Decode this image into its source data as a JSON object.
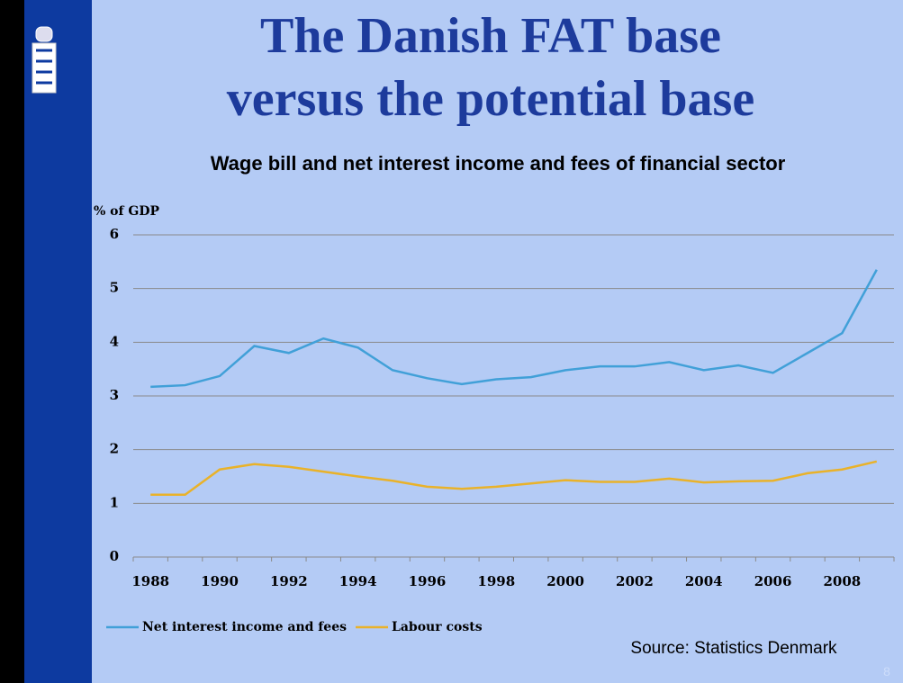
{
  "title_lines": [
    "The Danish FAT base",
    "versus the potential base"
  ],
  "source": "Source: Statistics Denmark",
  "slide_number": "8",
  "chart_data": {
    "type": "line",
    "title": "Wage bill and net interest income and fees of financial sector",
    "y_label": "% of GDP",
    "categories": [
      "1988",
      null,
      "1990",
      null,
      "1992",
      null,
      "1994",
      null,
      "1996",
      null,
      "1998",
      null,
      "2000",
      null,
      "2002",
      null,
      "2004",
      null,
      "2006",
      null,
      "2008",
      null
    ],
    "series": [
      {
        "name": "Net interest income and fees",
        "color": "#41a0d8",
        "values": [
          3.17,
          3.2,
          3.37,
          3.93,
          3.8,
          4.07,
          3.9,
          3.48,
          3.33,
          3.22,
          3.31,
          3.35,
          3.48,
          3.55,
          3.55,
          3.63,
          3.48,
          3.57,
          3.43,
          3.8,
          4.17,
          5.35
        ]
      },
      {
        "name": "Labour costs",
        "color": "#e9b22a",
        "values": [
          1.16,
          1.16,
          1.63,
          1.73,
          1.68,
          1.59,
          1.5,
          1.42,
          1.31,
          1.27,
          1.31,
          1.37,
          1.43,
          1.4,
          1.4,
          1.46,
          1.39,
          1.41,
          1.42,
          1.56,
          1.63,
          1.78
        ]
      }
    ],
    "ylim": [
      0,
      6
    ],
    "yticks": [
      0,
      1,
      2,
      3,
      4,
      5,
      6
    ],
    "grid": true,
    "legend": "bottom"
  }
}
